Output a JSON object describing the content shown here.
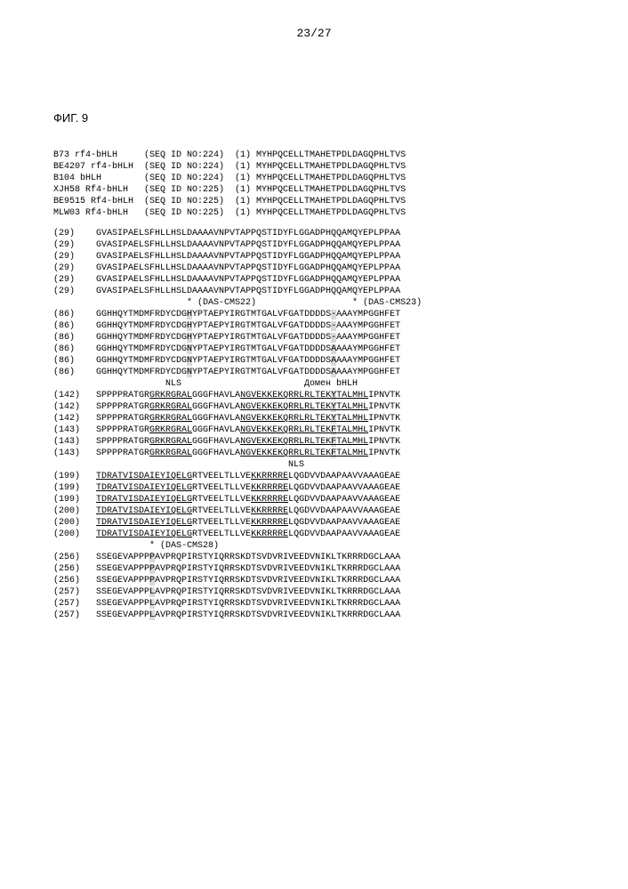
{
  "page_number": "23/27",
  "figure_label": "ФИГ. 9",
  "header_rows": [
    {
      "name": "B73 rf4-bHLH    ",
      "seqid": "(SEQ ID NO:224)",
      "pos": "(1)",
      "seq": "MYHPQCELLTMAHETPDLDAGQPHLTVS"
    },
    {
      "name": "BE4207 rf4-bHLH ",
      "seqid": "(SEQ ID NO:224)",
      "pos": "(1)",
      "seq": "MYHPQCELLTMAHETPDLDAGQPHLTVS"
    },
    {
      "name": "B104 bHLH       ",
      "seqid": "(SEQ ID NO:224)",
      "pos": "(1)",
      "seq": "MYHPQCELLTMAHETPDLDAGQPHLTVS"
    },
    {
      "name": "XJH58 Rf4-bHLH  ",
      "seqid": "(SEQ ID NO:225)",
      "pos": "(1)",
      "seq": "MYHPQCELLTMAHETPDLDAGQPHLTVS"
    },
    {
      "name": "BE9515 Rf4-bHLH ",
      "seqid": "(SEQ ID NO:225)",
      "pos": "(1)",
      "seq": "MYHPQCELLTMAHETPDLDAGQPHLTVS"
    },
    {
      "name": "MLW03 Rf4-bHLH  ",
      "seqid": "(SEQ ID NO:225)",
      "pos": "(1)",
      "seq": "MYHPQCELLTMAHETPDLDAGQPHLTVS"
    }
  ],
  "block2": {
    "pos": [
      "(29)",
      "(29)",
      "(29)",
      "(29)",
      "(29)",
      "(29)"
    ],
    "seq": "GVASIPAELSFHLLHSLDAAAAVNPVTAPPQSTIDYFLGGADPHQQAMQYEPLPPAA"
  },
  "annotation1_left": "* (DAS-CMS22)",
  "annotation1_right": "* (DAS-CMS23)",
  "block3": {
    "pos": [
      "(86)",
      "(86)",
      "(86)",
      "(86)",
      "(86)",
      "(86)"
    ],
    "pre": "GGHHQYTMDMFRDYCDG",
    "var": [
      "H",
      "H",
      "H",
      "N",
      "N",
      "N"
    ],
    "mid": "YPTAEPYIRGTMTGALVFGATDDDDS",
    "gap": [
      "-",
      "-",
      "-",
      "A",
      "A",
      "A"
    ],
    "post": "AAAYMPGGHFET"
  },
  "annotation2_nls": "NLS",
  "annotation2_domain": "Домен bHLH",
  "block4": {
    "pos": [
      "(142)",
      "(142)",
      "(142)",
      "(143)",
      "(143)",
      "(143)"
    ],
    "pre": "SPPPPRATGR",
    "nls": "GRKRGRAL",
    "mid1": "GGGFHAVLA",
    "dom1": "NGVEKKEKQRRLRLTEK",
    "var": [
      "Y",
      "Y",
      "Y",
      "F",
      "F",
      "F"
    ],
    "dom2": "TALMHL",
    "post": "IPNVTK"
  },
  "annotation3_nls": "NLS",
  "block5": {
    "pos": [
      "(199)",
      "(199)",
      "(199)",
      "(200)",
      "(200)",
      "(200)"
    ],
    "ul1": "TDRATVISDAIEYIQELG",
    "mid": "RTVEELTLLVE",
    "ul2": "KKRRRRE",
    "post": "LQGDVVDAAPAAVVAAAGEAE"
  },
  "annotation4": "* (DAS-CMS28)",
  "block6": {
    "pos": [
      "(256)",
      "(256)",
      "(256)",
      "(257)",
      "(257)",
      "(257)"
    ],
    "pre": "SSEGEVAPPP",
    "var": [
      "P",
      "P",
      "P",
      "L",
      "L",
      "L"
    ],
    "post": "AVPRQPIRSTYIQRRSKDTSVDVRIVEEDVNIKLTKRRRDGCLAAA"
  }
}
